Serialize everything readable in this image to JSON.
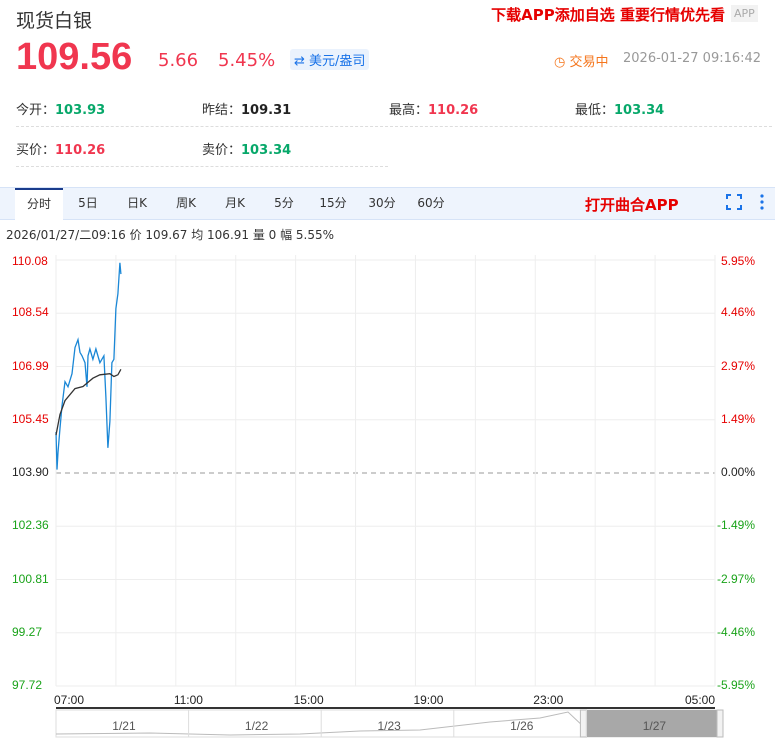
{
  "header": {
    "title": "现货白银",
    "promo": "下载APP添加自选 重要行情优先看",
    "app_button": "APP"
  },
  "quote": {
    "price": "109.56",
    "change": "5.66",
    "change_pct": "5.45%",
    "unit_toggle": "美元/盎司",
    "status": "交易中",
    "datetime": "2026-01-27 09:16:42",
    "stats": [
      {
        "label": "今开：",
        "value": "103.93",
        "color": "green"
      },
      {
        "label": "昨结：",
        "value": "109.31",
        "color": "dark"
      },
      {
        "label": "最高：",
        "value": "110.26",
        "color": "red"
      },
      {
        "label": "最低：",
        "value": "103.34",
        "color": "green"
      },
      {
        "label": "买价：",
        "value": "110.26",
        "color": "red"
      },
      {
        "label": "卖价：",
        "value": "103.34",
        "color": "green"
      }
    ]
  },
  "tabs": [
    {
      "label": "分时",
      "active": true
    },
    {
      "label": "5日"
    },
    {
      "label": "日K"
    },
    {
      "label": "周K"
    },
    {
      "label": "月K"
    },
    {
      "label": "5分"
    },
    {
      "label": "15分"
    },
    {
      "label": "30分"
    },
    {
      "label": "60分"
    }
  ],
  "open_app": "打开曲合APP",
  "info_bar": "2026/01/27/二09:16  价 109.67  均 106.91  量 0  幅 5.55%",
  "colors": {
    "up": "#f0364f",
    "down": "#07a86a",
    "price_line": "#1a87d6",
    "avg_line": "#333333",
    "accent": "#e60000"
  },
  "chart_data": {
    "type": "line",
    "y_ticks": [
      "110.08",
      "108.54",
      "106.99",
      "105.45",
      "103.90",
      "102.36",
      "100.81",
      "99.27",
      "97.72"
    ],
    "pct_ticks": [
      "5.95%",
      "4.46%",
      "2.97%",
      "1.49%",
      "0.00%",
      "-1.49%",
      "-2.97%",
      "-4.46%",
      "-5.95%"
    ],
    "x_ticks": [
      "07:00",
      "11:00",
      "15:00",
      "19:00",
      "23:00",
      "05:00"
    ],
    "ylim": [
      97.72,
      110.08
    ],
    "baseline": 103.9,
    "x_range": [
      "07:00",
      "05:00"
    ],
    "series": [
      {
        "key": "price",
        "points": [
          [
            "07:00",
            105.09
          ],
          [
            "07:02",
            104.0
          ],
          [
            "07:04",
            104.5
          ],
          [
            "07:08",
            105.2
          ],
          [
            "07:12",
            105.85
          ],
          [
            "07:18",
            106.55
          ],
          [
            "07:24",
            106.4
          ],
          [
            "07:32",
            106.78
          ],
          [
            "07:38",
            107.54
          ],
          [
            "07:44",
            107.77
          ],
          [
            "07:48",
            107.4
          ],
          [
            "07:52",
            107.3
          ],
          [
            "07:58",
            107.1
          ],
          [
            "08:02",
            106.4
          ],
          [
            "08:04",
            107.3
          ],
          [
            "08:08",
            107.5
          ],
          [
            "08:14",
            107.2
          ],
          [
            "08:20",
            107.5
          ],
          [
            "08:28",
            107.1
          ],
          [
            "08:36",
            107.3
          ],
          [
            "08:40",
            106.1
          ],
          [
            "08:44",
            104.63
          ],
          [
            "08:48",
            105.4
          ],
          [
            "08:52",
            107.1
          ],
          [
            "08:56",
            107.2
          ],
          [
            "09:00",
            108.67
          ],
          [
            "09:04",
            109.1
          ],
          [
            "09:08",
            110.0
          ],
          [
            "09:10",
            109.67
          ]
        ]
      },
      {
        "key": "avg",
        "points": [
          [
            "07:00",
            105.0
          ],
          [
            "07:08",
            105.6
          ],
          [
            "07:18",
            106.0
          ],
          [
            "07:38",
            106.35
          ],
          [
            "07:54",
            106.41
          ],
          [
            "08:14",
            106.65
          ],
          [
            "08:28",
            106.75
          ],
          [
            "08:48",
            106.78
          ],
          [
            "08:56",
            106.7
          ],
          [
            "09:04",
            106.75
          ],
          [
            "09:10",
            106.91
          ]
        ]
      }
    ]
  },
  "navigator": {
    "dates": [
      "1/21",
      "1/22",
      "1/23",
      "1/26",
      "1/27"
    ],
    "selected": "1/27"
  }
}
